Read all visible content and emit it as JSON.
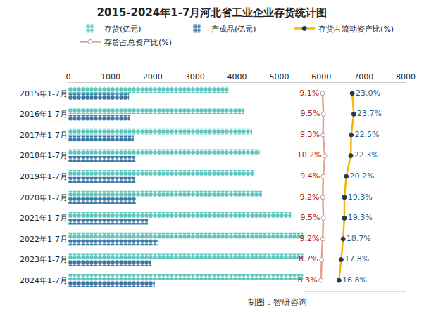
{
  "chart_data": {
    "type": "bar",
    "title": "2015-2024年1-7月河北省工业企业存货统计图",
    "orientation": "horizontal",
    "categories": [
      "2015年1-7月",
      "2016年1-7月",
      "2017年1-7月",
      "2018年1-7月",
      "2019年1-7月",
      "2020年1-7月",
      "2021年1-7月",
      "2022年1-7月",
      "2023年1-7月",
      "2024年1-7月"
    ],
    "xlim": [
      0,
      8000
    ],
    "xticks": [
      0,
      1000,
      2000,
      3000,
      4000,
      5000,
      6000,
      7000,
      8000
    ],
    "x2lim": [
      0,
      48
    ],
    "grid": false,
    "legend": "top",
    "series": [
      {
        "name": "存货(亿元)",
        "type": "bar",
        "color": "#5cc6bf",
        "marker": "circle",
        "values": [
          3800,
          4170,
          4360,
          4540,
          4390,
          4590,
          5280,
          5590,
          5580,
          5580
        ]
      },
      {
        "name": "产成品(亿元)",
        "type": "bar",
        "color": "#3b78a6",
        "marker": "circle",
        "values": [
          1440,
          1470,
          1550,
          1590,
          1590,
          1600,
          1890,
          2140,
          1970,
          2050
        ]
      },
      {
        "name": "存货占流动资产比(%)",
        "type": "line",
        "axis": "x2",
        "color": "#f5b800",
        "marker": "circle",
        "data_labels": true,
        "values": [
          23.0,
          23.7,
          22.5,
          22.3,
          20.2,
          19.3,
          19.3,
          18.7,
          17.8,
          16.8
        ],
        "value_labels": [
          "23.0%",
          "23.7%",
          "22.5%",
          "22.3%",
          "20.2%",
          "19.3%",
          "19.3%",
          "18.7%",
          "17.8%",
          "16.8%"
        ]
      },
      {
        "name": "存货占总资产比(%)",
        "type": "line",
        "axis": "x2",
        "color": "#e8a08a",
        "marker": "circle",
        "data_labels": true,
        "values": [
          9.1,
          9.5,
          9.3,
          10.2,
          9.4,
          9.2,
          9.5,
          9.2,
          8.7,
          8.3
        ],
        "value_labels": [
          "9.1%",
          "9.5%",
          "9.3%",
          "10.2%",
          "9.4%",
          "9.2%",
          "9.5%",
          "9.2%",
          "8.7%",
          "8.3%"
        ]
      }
    ],
    "source": "制图：智研咨询"
  }
}
